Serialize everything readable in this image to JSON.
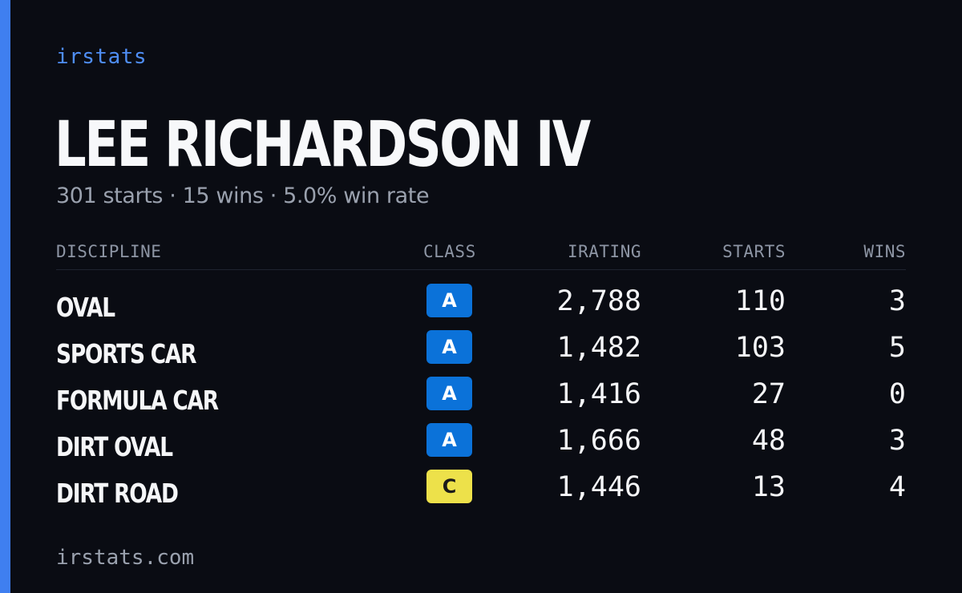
{
  "brand": "irstats",
  "driver": {
    "name": "LEE RICHARDSON IV",
    "summary": "301 starts · 15 wins · 5.0% win rate"
  },
  "table": {
    "headers": {
      "discipline": "DISCIPLINE",
      "class": "CLASS",
      "irating": "IRATING",
      "starts": "STARTS",
      "wins": "WINS"
    },
    "rows": [
      {
        "discipline": "OVAL",
        "class": "A",
        "irating": "2,788",
        "starts": "110",
        "wins": "3"
      },
      {
        "discipline": "SPORTS CAR",
        "class": "A",
        "irating": "1,482",
        "starts": "103",
        "wins": "5"
      },
      {
        "discipline": "FORMULA CAR",
        "class": "A",
        "irating": "1,416",
        "starts": "27",
        "wins": "0"
      },
      {
        "discipline": "DIRT OVAL",
        "class": "A",
        "irating": "1,666",
        "starts": "48",
        "wins": "3"
      },
      {
        "discipline": "DIRT ROAD",
        "class": "C",
        "irating": "1,446",
        "starts": "13",
        "wins": "4"
      }
    ]
  },
  "footer": "irstats.com",
  "colors": {
    "accent": "#3f7ff0",
    "background": "#0a0c13",
    "class_a": "#0b72d9",
    "class_c": "#ede14a"
  }
}
